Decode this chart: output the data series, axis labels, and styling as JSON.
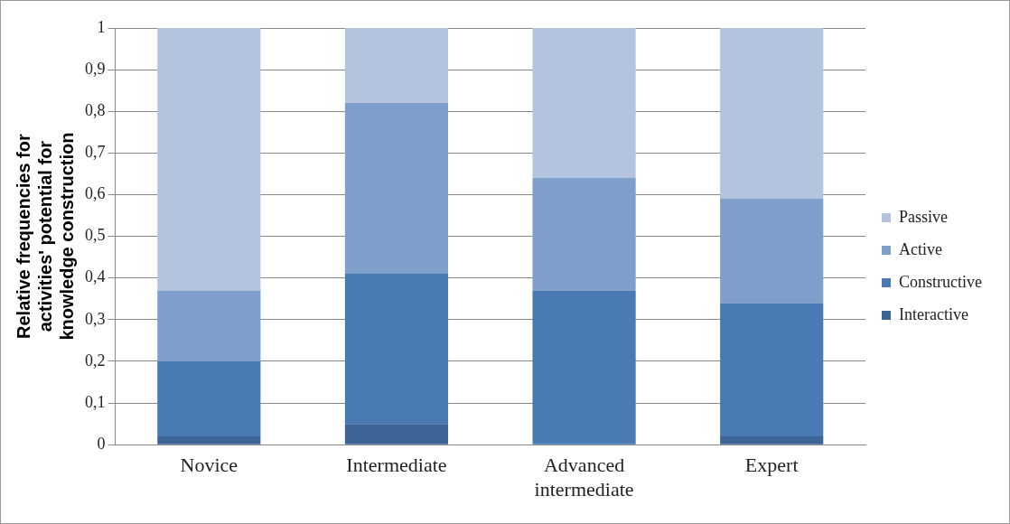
{
  "chart_data": {
    "type": "bar",
    "stacked": true,
    "ylabel": "Relative frequencies for activities' potential for knowledge construction",
    "categories": [
      "Novice",
      "Intermediate",
      "Advanced intermediate",
      "Expert"
    ],
    "series": [
      {
        "name": "Interactive",
        "color": "#3c6496",
        "values": [
          0.02,
          0.05,
          0,
          0.02
        ]
      },
      {
        "name": "Constructive",
        "color": "#4a7ab4",
        "values": [
          0.18,
          0.36,
          0.37,
          0.32
        ]
      },
      {
        "name": "Active",
        "color": "#7f9fcb",
        "values": [
          0.17,
          0.41,
          0.27,
          0.25
        ]
      },
      {
        "name": "Passive",
        "color": "#b4c4df",
        "values": [
          0.63,
          0.18,
          0.36,
          0.41
        ]
      }
    ],
    "ylim": [
      0,
      1
    ],
    "yticks": [
      0,
      {
        "value": 0.1,
        "label": "0,1"
      },
      {
        "value": 0.2,
        "label": "0,2"
      },
      {
        "value": 0.3,
        "label": "0,3"
      },
      {
        "value": 0.4,
        "label": "0,4"
      },
      {
        "value": 0.5,
        "label": "0,5"
      },
      {
        "value": 0.6,
        "label": "0,6"
      },
      {
        "value": 0.7,
        "label": "0,7"
      },
      {
        "value": 0.8,
        "label": "0,8"
      },
      {
        "value": 0.9,
        "label": "0,9"
      },
      1
    ],
    "grid": "y",
    "legend": "right"
  }
}
